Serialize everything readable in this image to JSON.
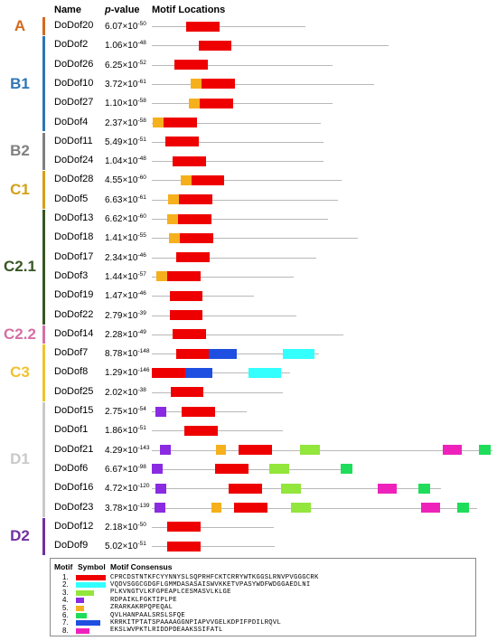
{
  "headers": {
    "name": "Name",
    "pvalue_p": "p",
    "pvalue_rest": "-value",
    "motif": "Motif Locations"
  },
  "colors": {
    "A": "#d46a1e",
    "B1": "#2e75b6",
    "B2": "#808080",
    "C1": "#d4a017",
    "C21": "#375623",
    "C22": "#d66fa3",
    "C3": "#f2c12e",
    "D1": "#c9c9c9",
    "D2": "#7030a0",
    "m1": "#ee0000",
    "m2": "#33ffff",
    "m3": "#92e63c",
    "m4": "#8a2be2",
    "m5": "#f5b01c",
    "m6": "#1fdd5a",
    "m7": "#1f4fe0",
    "m8": "#ee22bb"
  },
  "groups": [
    {
      "id": "A",
      "label": "A",
      "color": "A",
      "rows": [
        0,
        0
      ]
    },
    {
      "id": "B1",
      "label": "B1",
      "color": "B1",
      "rows": [
        1,
        5
      ]
    },
    {
      "id": "B2",
      "label": "B2",
      "color": "B2",
      "rows": [
        6,
        7
      ]
    },
    {
      "id": "C1",
      "label": "C1",
      "color": "C1",
      "rows": [
        8,
        9
      ]
    },
    {
      "id": "C21",
      "label": "C2.1",
      "color": "C21",
      "rows": [
        10,
        15
      ]
    },
    {
      "id": "C22",
      "label": "C2.2",
      "color": "C22",
      "rows": [
        16,
        16
      ]
    },
    {
      "id": "C3",
      "label": "C3",
      "color": "C3",
      "rows": [
        17,
        19
      ]
    },
    {
      "id": "D1",
      "label": "D1",
      "color": "D1",
      "rows": [
        20,
        25
      ]
    },
    {
      "id": "D2",
      "label": "D2",
      "color": "D2",
      "rows": [
        26,
        27
      ]
    }
  ],
  "genes": [
    {
      "name": "DoDof20",
      "mant": "6.07",
      "exp": "-50",
      "len": 170,
      "motifs": [
        [
          1,
          38,
          75
        ]
      ]
    },
    {
      "name": "DoDof2",
      "mant": "1.06",
      "exp": "-48",
      "len": 262,
      "motifs": [
        [
          1,
          52,
          88
        ]
      ]
    },
    {
      "name": "DoDof26",
      "mant": "6.25",
      "exp": "-52",
      "len": 200,
      "motifs": [
        [
          1,
          25,
          62
        ]
      ]
    },
    {
      "name": "DoDof10",
      "mant": "3.72",
      "exp": "-61",
      "len": 246,
      "motifs": [
        [
          5,
          43,
          55
        ],
        [
          1,
          55,
          92
        ]
      ]
    },
    {
      "name": "DoDof27",
      "mant": "1.10",
      "exp": "-58",
      "len": 200,
      "motifs": [
        [
          5,
          41,
          53
        ],
        [
          1,
          53,
          90
        ]
      ]
    },
    {
      "name": "DoDof4",
      "mant": "2.37",
      "exp": "-58",
      "len": 187,
      "motifs": [
        [
          5,
          1,
          13
        ],
        [
          1,
          13,
          50
        ]
      ]
    },
    {
      "name": "DoDof11",
      "mant": "5.49",
      "exp": "-51",
      "len": 190,
      "motifs": [
        [
          1,
          15,
          52
        ]
      ]
    },
    {
      "name": "DoDof24",
      "mant": "1.04",
      "exp": "-48",
      "len": 190,
      "motifs": [
        [
          1,
          23,
          60
        ]
      ]
    },
    {
      "name": "DoDof28",
      "mant": "4.55",
      "exp": "-60",
      "len": 210,
      "motifs": [
        [
          5,
          32,
          44
        ],
        [
          1,
          44,
          80
        ]
      ]
    },
    {
      "name": "DoDof5",
      "mant": "6.63",
      "exp": "-61",
      "len": 206,
      "motifs": [
        [
          5,
          18,
          30
        ],
        [
          1,
          30,
          67
        ]
      ]
    },
    {
      "name": "DoDof13",
      "mant": "6.62",
      "exp": "-60",
      "len": 195,
      "motifs": [
        [
          5,
          17,
          29
        ],
        [
          1,
          29,
          66
        ]
      ]
    },
    {
      "name": "DoDof18",
      "mant": "1.41",
      "exp": "-55",
      "len": 228,
      "motifs": [
        [
          5,
          19,
          31
        ],
        [
          1,
          31,
          68
        ]
      ]
    },
    {
      "name": "DoDof17",
      "mant": "2.34",
      "exp": "-46",
      "len": 182,
      "motifs": [
        [
          1,
          27,
          64
        ]
      ]
    },
    {
      "name": "DoDof3",
      "mant": "1.44",
      "exp": "-57",
      "len": 157,
      "motifs": [
        [
          5,
          5,
          17
        ],
        [
          1,
          17,
          54
        ]
      ]
    },
    {
      "name": "DoDof19",
      "mant": "1.47",
      "exp": "-46",
      "len": 113,
      "motifs": [
        [
          1,
          20,
          56
        ]
      ]
    },
    {
      "name": "DoDof22",
      "mant": "2.79",
      "exp": "-39",
      "len": 160,
      "motifs": [
        [
          1,
          20,
          56
        ]
      ]
    },
    {
      "name": "DoDof14",
      "mant": "2.28",
      "exp": "-49",
      "len": 212,
      "motifs": [
        [
          1,
          23,
          60
        ]
      ]
    },
    {
      "name": "DoDof7",
      "mant": "8.78",
      "exp": "-148",
      "len": 185,
      "motifs": [
        [
          1,
          27,
          63
        ],
        [
          7,
          63,
          94
        ],
        [
          2,
          145,
          180
        ]
      ]
    },
    {
      "name": "DoDof8",
      "mant": "1.29",
      "exp": "-146",
      "len": 153,
      "motifs": [
        [
          1,
          0,
          37
        ],
        [
          7,
          37,
          67
        ],
        [
          2,
          107,
          143
        ]
      ]
    },
    {
      "name": "DoDof25",
      "mant": "2.02",
      "exp": "-38",
      "len": 145,
      "motifs": [
        [
          1,
          21,
          57
        ]
      ]
    },
    {
      "name": "DoDof15",
      "mant": "2.75",
      "exp": "-54",
      "len": 105,
      "motifs": [
        [
          4,
          4,
          16
        ],
        [
          1,
          33,
          70
        ]
      ]
    },
    {
      "name": "DoDof1",
      "mant": "1.86",
      "exp": "-51",
      "len": 145,
      "motifs": [
        [
          1,
          36,
          73
        ]
      ]
    },
    {
      "name": "DoDof21",
      "mant": "4.29",
      "exp": "-143",
      "len": 377,
      "motifs": [
        [
          4,
          9,
          21
        ],
        [
          5,
          71,
          82
        ],
        [
          1,
          96,
          133
        ],
        [
          3,
          164,
          186
        ],
        [
          8,
          322,
          343
        ],
        [
          6,
          362,
          375
        ]
      ]
    },
    {
      "name": "DoDof6",
      "mant": "6.67",
      "exp": "-98",
      "len": 220,
      "motifs": [
        [
          4,
          0,
          12
        ],
        [
          1,
          70,
          107
        ],
        [
          3,
          130,
          152
        ],
        [
          6,
          209,
          222
        ]
      ]
    },
    {
      "name": "DoDof16",
      "mant": "4.72",
      "exp": "-120",
      "len": 320,
      "motifs": [
        [
          4,
          4,
          16
        ],
        [
          1,
          85,
          122
        ],
        [
          3,
          143,
          165
        ],
        [
          8,
          250,
          271
        ],
        [
          6,
          295,
          308
        ]
      ]
    },
    {
      "name": "DoDof23",
      "mant": "3.78",
      "exp": "-139",
      "len": 360,
      "motifs": [
        [
          4,
          3,
          15
        ],
        [
          5,
          66,
          77
        ],
        [
          1,
          91,
          128
        ],
        [
          3,
          154,
          176
        ],
        [
          8,
          298,
          319
        ],
        [
          6,
          338,
          351
        ]
      ]
    },
    {
      "name": "DoDof12",
      "mant": "2.18",
      "exp": "-50",
      "len": 135,
      "motifs": [
        [
          1,
          17,
          54
        ]
      ]
    },
    {
      "name": "DoDof9",
      "mant": "5.02",
      "exp": "-51",
      "len": 136,
      "motifs": [
        [
          1,
          17,
          54
        ]
      ]
    }
  ],
  "legend": {
    "h_motif": "Motif",
    "h_symbol": "Symbol",
    "h_consensus": "Motif Consensus",
    "items": [
      {
        "num": "1.",
        "color": "m1",
        "w": 33,
        "cons": "CPRCDSTNTKFCYYNNYSLSQPRHFCKTCRRYWTKGGSLRNVPVGGGCRK"
      },
      {
        "num": "2.",
        "color": "m2",
        "w": 33,
        "cons": "VQDVSGGCGDGFLGMMDASASAISWVKKETVPASYWDFWDGGAEDLNI"
      },
      {
        "num": "3.",
        "color": "m3",
        "w": 20,
        "cons": "PLKVNGTVLKFGPEAPLCESMASVLKLGE"
      },
      {
        "num": "4.",
        "color": "m4",
        "w": 9,
        "cons": "RDPAIKLFGKTIPLPE"
      },
      {
        "num": "5.",
        "color": "m5",
        "w": 9,
        "cons": "ZRARKAKRPQPEQAL"
      },
      {
        "num": "6.",
        "color": "m6",
        "w": 12,
        "cons": "QVLHANPAALSRSLSFQE"
      },
      {
        "num": "7.",
        "color": "m7",
        "w": 27,
        "cons": "KRRKITPTATSPAAAAGGNPIAPVVGELKDPIFPDILRQVL"
      },
      {
        "num": "8.",
        "color": "m8",
        "w": 15,
        "cons": "EKSLWVPKTLRIDDPDEAAKSSIFATL"
      }
    ]
  }
}
